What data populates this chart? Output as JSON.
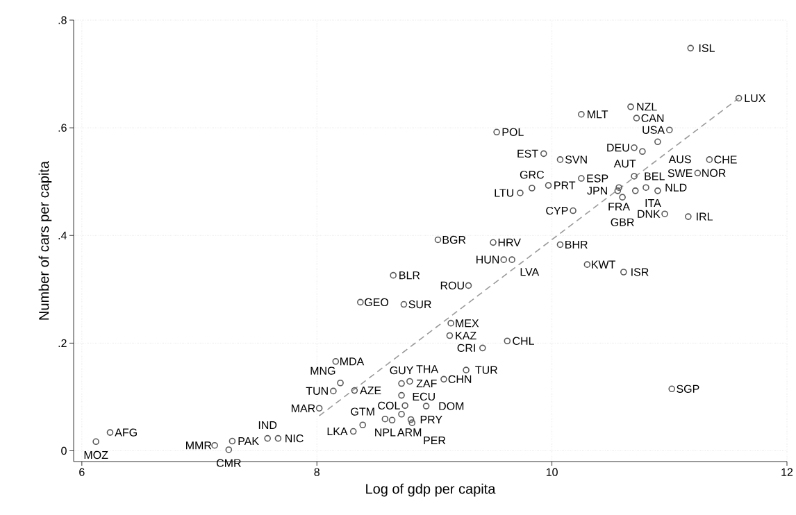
{
  "chart_data": {
    "type": "scatter",
    "xlabel": "Log of gdp per capita",
    "ylabel": "Number of cars per capita",
    "xlim": [
      5.93,
      12
    ],
    "ylim": [
      -0.02,
      0.8
    ],
    "xticks": [
      6,
      8,
      10,
      12
    ],
    "yticks": [
      0,
      {
        "value": 0.2,
        "label": ".2"
      },
      {
        "value": 0.4,
        "label": ".4"
      },
      {
        "value": 0.6,
        "label": ".6"
      },
      {
        "value": 0.8,
        "label": ".8"
      }
    ],
    "grid": true,
    "series": [
      {
        "marker": "circle",
        "color": "#595959",
        "x": [
          6.24,
          6.12,
          7.13,
          7.28,
          7.25,
          7.58,
          7.67,
          8.02,
          8.16,
          8.2,
          8.14,
          8.32,
          8.31,
          8.39,
          8.58,
          8.64,
          8.72,
          8.8,
          8.81,
          8.75,
          8.93,
          8.72,
          8.72,
          8.79,
          9.08,
          9.27,
          9.41,
          9.62,
          9.13,
          9.14,
          8.37,
          8.74,
          8.65,
          9.29,
          9.03,
          9.5,
          9.59,
          9.66,
          10.07,
          10.3,
          10.61,
          10.18,
          10.96,
          11.16,
          9.73,
          9.83,
          9.97,
          10.25,
          9.93,
          10.07,
          9.53,
          10.25,
          10.67,
          10.72,
          11.0,
          10.9,
          10.7,
          10.77,
          11.34,
          11.24,
          10.7,
          10.57,
          10.56,
          10.71,
          10.8,
          10.9,
          10.6,
          11.59,
          11.18,
          11.02
        ],
        "values": [
          0.034,
          0.017,
          0.01,
          0.018,
          0.002,
          0.023,
          0.023,
          0.079,
          0.166,
          0.126,
          0.111,
          0.112,
          0.036,
          0.048,
          0.059,
          0.057,
          0.068,
          0.058,
          0.052,
          0.084,
          0.083,
          0.103,
          0.125,
          0.129,
          0.133,
          0.15,
          0.191,
          0.204,
          0.214,
          0.237,
          0.276,
          0.272,
          0.326,
          0.307,
          0.392,
          0.387,
          0.355,
          0.355,
          0.383,
          0.346,
          0.332,
          0.446,
          0.44,
          0.435,
          0.479,
          0.488,
          0.493,
          0.506,
          0.552,
          0.541,
          0.592,
          0.625,
          0.639,
          0.618,
          0.596,
          0.574,
          0.563,
          0.556,
          0.541,
          0.516,
          0.51,
          0.489,
          0.483,
          0.483,
          0.489,
          0.483,
          0.471,
          0.655,
          0.748,
          0.115
        ]
      },
      {
        "type": "line",
        "color": "#9a9a9a",
        "line_style": "dashed",
        "x": [
          8.02,
          11.59
        ],
        "values": [
          0.065,
          0.655
        ]
      }
    ],
    "annotations": [
      {
        "text": "AFG",
        "x": 6.24,
        "y": 0.034
      },
      {
        "text": "MOZ",
        "x": 6.12,
        "y": 0.017
      },
      {
        "text": "MMR",
        "x": 7.13,
        "y": 0.01
      },
      {
        "text": "PAK",
        "x": 7.28,
        "y": 0.018
      },
      {
        "text": "CMR",
        "x": 7.25,
        "y": 0.002
      },
      {
        "text": "IND",
        "x": 7.58,
        "y": 0.023
      },
      {
        "text": "NIC",
        "x": 7.67,
        "y": 0.023
      },
      {
        "text": "MAR",
        "x": 8.02,
        "y": 0.079
      },
      {
        "text": "MDA",
        "x": 8.16,
        "y": 0.166
      },
      {
        "text": "MNG",
        "x": 8.2,
        "y": 0.126
      },
      {
        "text": "TUN",
        "x": 8.14,
        "y": 0.111
      },
      {
        "text": "AZE",
        "x": 8.32,
        "y": 0.112
      },
      {
        "text": "LKA",
        "x": 8.31,
        "y": 0.036
      },
      {
        "text": "GTM",
        "x": 8.39,
        "y": 0.048
      },
      {
        "text": "NPL",
        "x": 8.58,
        "y": 0.059
      },
      {
        "text": "ARM",
        "x": 8.64,
        "y": 0.057
      },
      {
        "text": "ECU",
        "x": 8.72,
        "y": 0.068
      },
      {
        "text": "PRY",
        "x": 8.8,
        "y": 0.058
      },
      {
        "text": "PER",
        "x": 8.81,
        "y": 0.052
      },
      {
        "text": "COL",
        "x": 8.75,
        "y": 0.084
      },
      {
        "text": "DOM",
        "x": 8.93,
        "y": 0.083
      },
      {
        "text": "GUY",
        "x": 8.72,
        "y": 0.103
      },
      {
        "text": "ZAF",
        "x": 8.72,
        "y": 0.125
      },
      {
        "text": "THA",
        "x": 8.79,
        "y": 0.129
      },
      {
        "text": "CHN",
        "x": 9.08,
        "y": 0.133
      },
      {
        "text": "TUR",
        "x": 9.27,
        "y": 0.15
      },
      {
        "text": "CRI",
        "x": 9.41,
        "y": 0.191
      },
      {
        "text": "CHL",
        "x": 9.62,
        "y": 0.204
      },
      {
        "text": "KAZ",
        "x": 9.13,
        "y": 0.214
      },
      {
        "text": "MEX",
        "x": 9.14,
        "y": 0.237
      },
      {
        "text": "GEO",
        "x": 8.37,
        "y": 0.276
      },
      {
        "text": "SUR",
        "x": 8.74,
        "y": 0.272
      },
      {
        "text": "BLR",
        "x": 8.65,
        "y": 0.326
      },
      {
        "text": "ROU",
        "x": 9.29,
        "y": 0.307
      },
      {
        "text": "BGR",
        "x": 9.03,
        "y": 0.392
      },
      {
        "text": "HRV",
        "x": 9.5,
        "y": 0.387
      },
      {
        "text": "HUN",
        "x": 9.59,
        "y": 0.355
      },
      {
        "text": "LVA",
        "x": 9.66,
        "y": 0.355
      },
      {
        "text": "BHR",
        "x": 10.07,
        "y": 0.383
      },
      {
        "text": "KWT",
        "x": 10.3,
        "y": 0.346
      },
      {
        "text": "ISR",
        "x": 10.61,
        "y": 0.332
      },
      {
        "text": "CYP",
        "x": 10.18,
        "y": 0.446
      },
      {
        "text": "DNK",
        "x": 10.96,
        "y": 0.44
      },
      {
        "text": "IRL",
        "x": 11.16,
        "y": 0.435
      },
      {
        "text": "LTU",
        "x": 9.73,
        "y": 0.479
      },
      {
        "text": "GRC",
        "x": 9.83,
        "y": 0.488
      },
      {
        "text": "PRT",
        "x": 9.97,
        "y": 0.493
      },
      {
        "text": "ESP",
        "x": 10.25,
        "y": 0.506
      },
      {
        "text": "EST",
        "x": 9.93,
        "y": 0.552
      },
      {
        "text": "SVN",
        "x": 10.07,
        "y": 0.541
      },
      {
        "text": "POL",
        "x": 9.53,
        "y": 0.592
      },
      {
        "text": "MLT",
        "x": 10.25,
        "y": 0.625
      },
      {
        "text": "NZL",
        "x": 10.67,
        "y": 0.639
      },
      {
        "text": "CAN",
        "x": 10.72,
        "y": 0.618
      },
      {
        "text": "USA",
        "x": 11.0,
        "y": 0.596
      },
      {
        "text": "AUS",
        "x": 10.9,
        "y": 0.574
      },
      {
        "text": "DEU",
        "x": 10.7,
        "y": 0.563
      },
      {
        "text": "AUT",
        "x": 10.77,
        "y": 0.556
      },
      {
        "text": "CHE",
        "x": 11.34,
        "y": 0.541
      },
      {
        "text": "NOR",
        "x": 11.24,
        "y": 0.516
      },
      {
        "text": "BEL",
        "x": 10.7,
        "y": 0.51
      },
      {
        "text": "FRA",
        "x": 10.57,
        "y": 0.489
      },
      {
        "text": "JPN",
        "x": 10.56,
        "y": 0.483
      },
      {
        "text": "ITA",
        "x": 10.71,
        "y": 0.483
      },
      {
        "text": "NLD",
        "x": 10.8,
        "y": 0.489
      },
      {
        "text": "SWE",
        "x": 10.9,
        "y": 0.483
      },
      {
        "text": "GBR",
        "x": 10.6,
        "y": 0.471
      },
      {
        "text": "LUX",
        "x": 11.59,
        "y": 0.655
      },
      {
        "text": "ISL",
        "x": 11.18,
        "y": 0.748
      },
      {
        "text": "SGP",
        "x": 11.02,
        "y": 0.115
      }
    ]
  }
}
